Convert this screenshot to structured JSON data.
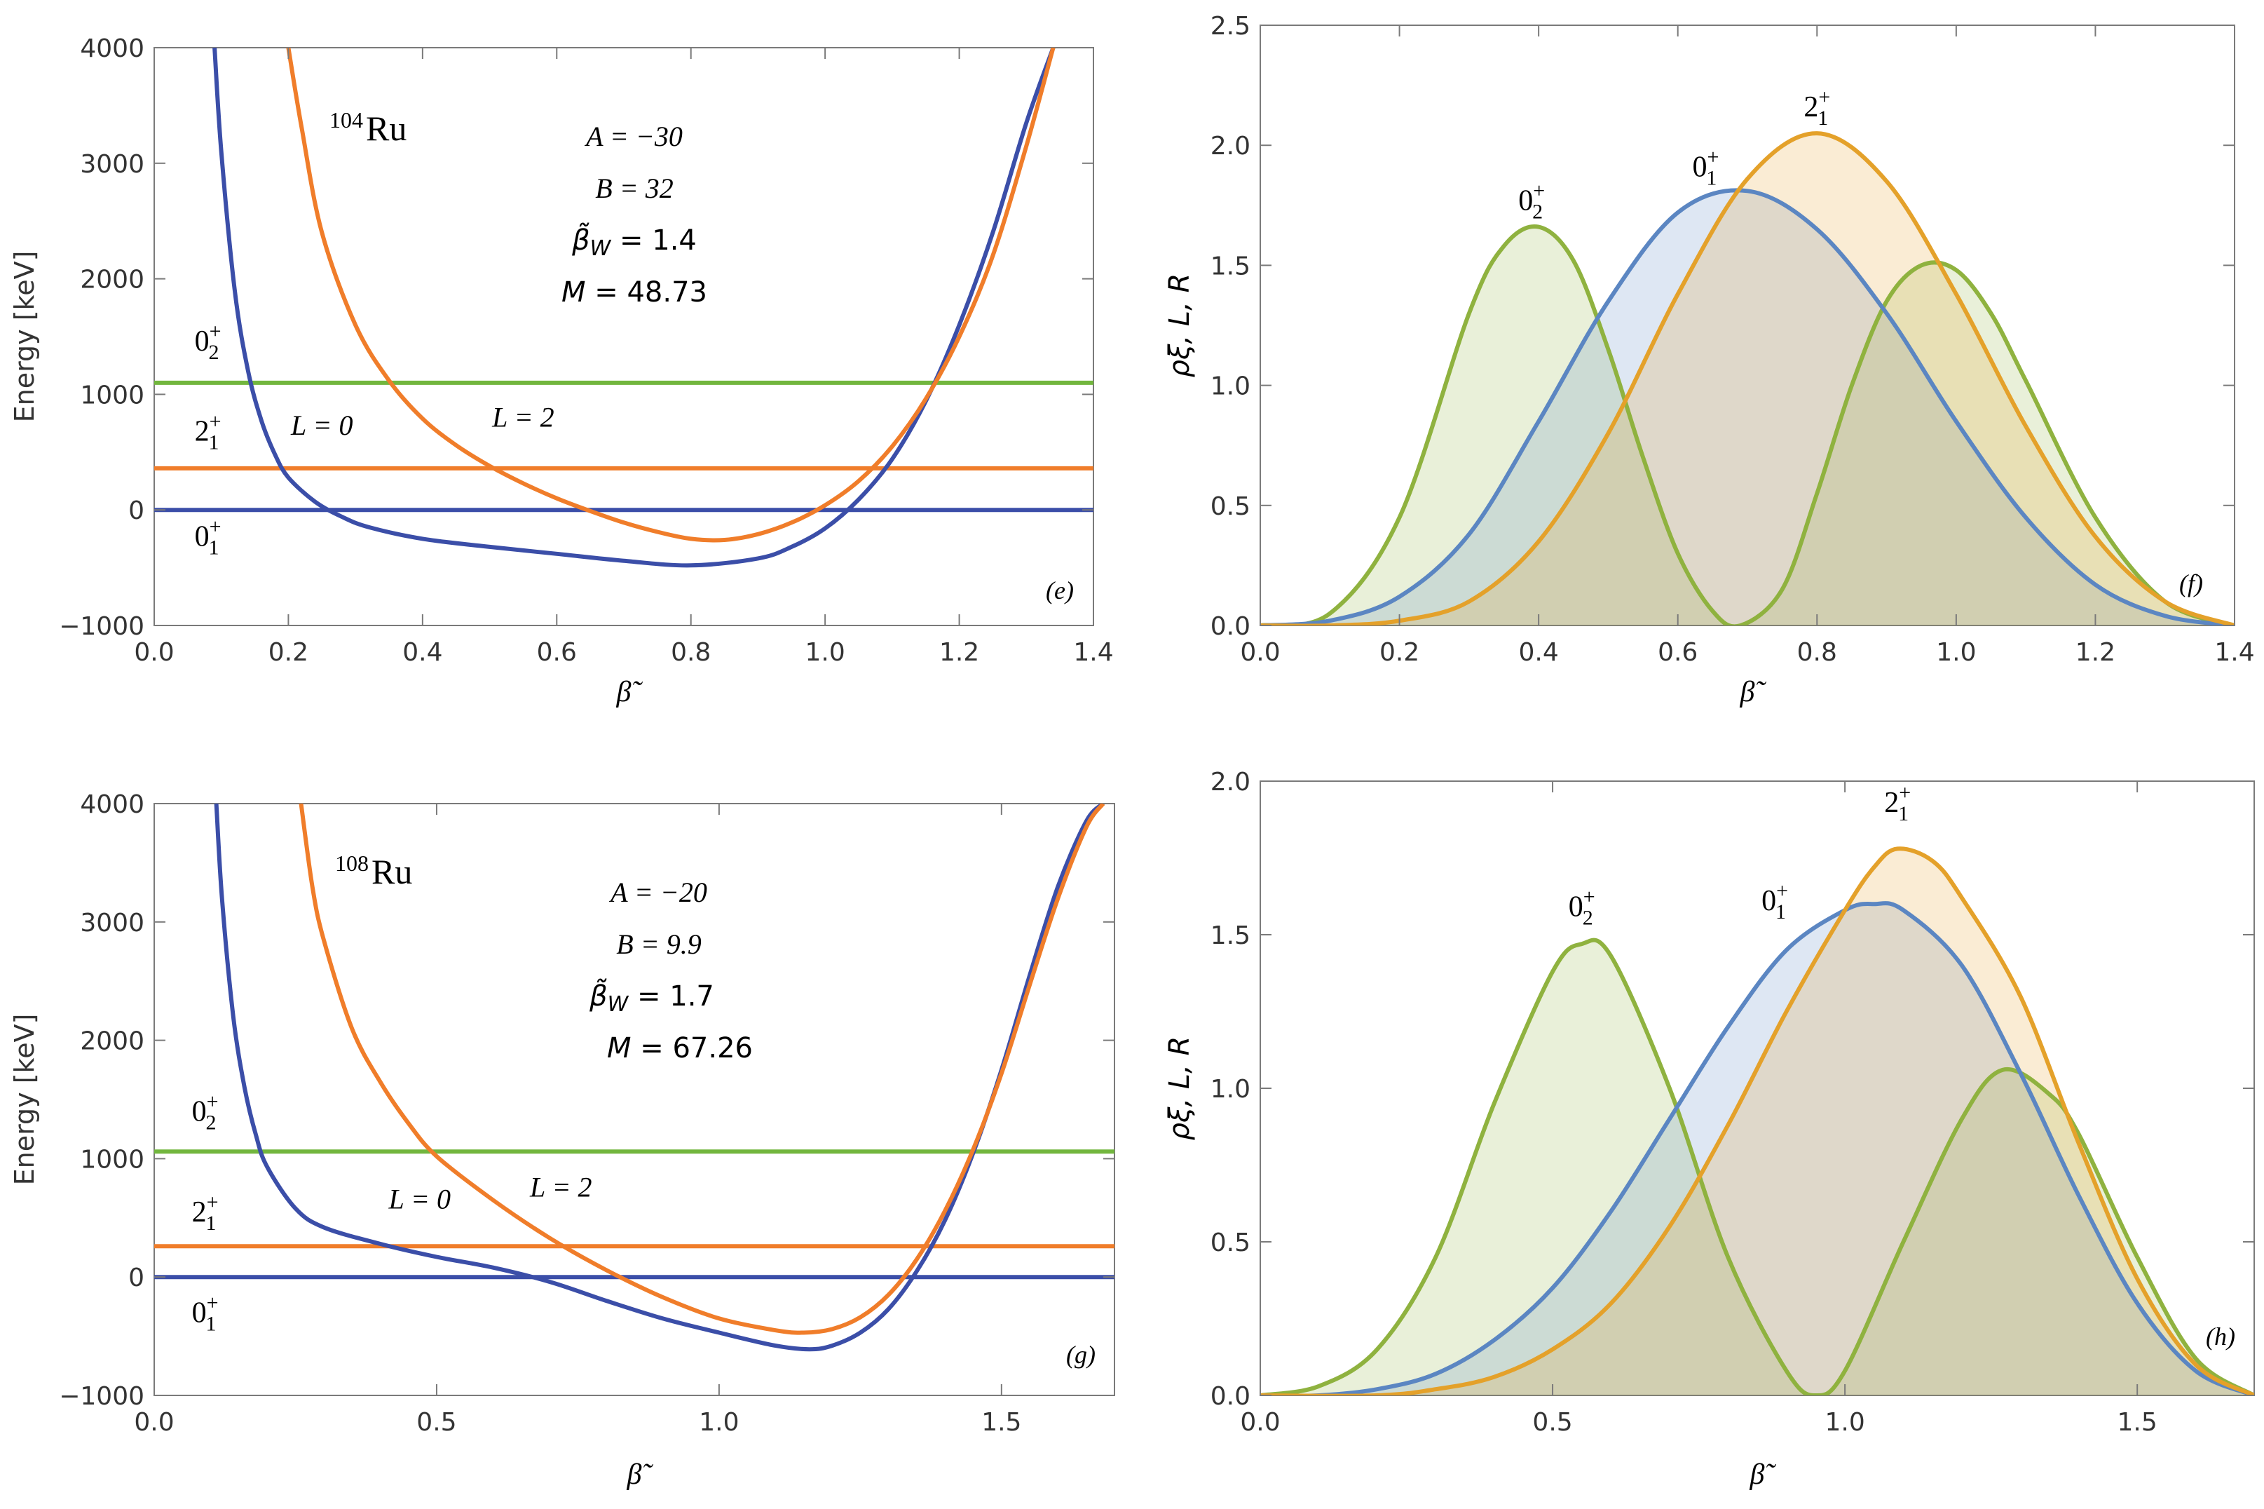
{
  "colors": {
    "blue": "#3b4ea8",
    "orange": "#f07d2a",
    "green": "#72b63e",
    "dens_blue": "#5b86c2",
    "dens_orange": "#e4a12a",
    "dens_green": "#8fb23f"
  },
  "chart_data": [
    {
      "type": "line",
      "panel": "(e)",
      "nucleus_mass": "104",
      "nucleus_symbol": "Ru",
      "params": {
        "A": "A = −30",
        "B": "B = 32",
        "bw_lhs": "β̃",
        "bw_sub": "W",
        "bw_val": " = 1.4",
        "M_lhs": "M",
        "M_val": " = 48.73"
      },
      "xlabel": "β̃",
      "ylabel": "Energy [keV]",
      "xlim": [
        0,
        1.4
      ],
      "ylim": [
        -1000,
        4000
      ],
      "xticks": [
        0.0,
        0.2,
        0.4,
        0.6,
        0.8,
        1.0,
        1.2,
        1.4
      ],
      "xtick_labels": [
        "0.0",
        "0.2",
        "0.4",
        "0.6",
        "0.8",
        "1.0",
        "1.2",
        "1.4"
      ],
      "yticks": [
        -1000,
        0,
        1000,
        2000,
        3000,
        4000
      ],
      "ytick_labels": [
        "−1000",
        "0",
        "1000",
        "2000",
        "3000",
        "4000"
      ],
      "potentials": [
        {
          "name": "L = 0",
          "label_pos": [
            0.25,
            650
          ],
          "x": [
            0.09,
            0.1,
            0.12,
            0.14,
            0.16,
            0.18,
            0.2,
            0.24,
            0.28,
            0.32,
            0.4,
            0.5,
            0.6,
            0.7,
            0.8,
            0.9,
            0.95,
            1.0,
            1.05,
            1.1,
            1.15,
            1.2,
            1.25,
            1.3,
            1.34
          ],
          "y": [
            4000,
            3100,
            1900,
            1200,
            770,
            480,
            280,
            70,
            -60,
            -150,
            -250,
            -320,
            -380,
            -440,
            -480,
            -420,
            -320,
            -160,
            90,
            440,
            940,
            1600,
            2400,
            3350,
            4000
          ]
        },
        {
          "name": "L = 2",
          "label_pos": [
            0.55,
            720
          ],
          "x": [
            0.2,
            0.22,
            0.25,
            0.3,
            0.35,
            0.4,
            0.45,
            0.5,
            0.55,
            0.6,
            0.65,
            0.7,
            0.75,
            0.8,
            0.85,
            0.9,
            0.95,
            1.0,
            1.05,
            1.1,
            1.15,
            1.2,
            1.25,
            1.3,
            1.34
          ],
          "y": [
            4000,
            3300,
            2400,
            1600,
            1120,
            790,
            560,
            380,
            230,
            100,
            -10,
            -110,
            -190,
            -250,
            -260,
            -210,
            -110,
            40,
            250,
            550,
            960,
            1500,
            2200,
            3150,
            4000
          ]
        }
      ],
      "levels": [
        {
          "state": "0",
          "sub": "1",
          "energy": 0,
          "label_pos": [
            0.08,
            -310
          ]
        },
        {
          "state": "2",
          "sub": "1",
          "energy": 360,
          "label_pos": [
            0.08,
            600
          ]
        },
        {
          "state": "0",
          "sub": "2",
          "energy": 1100,
          "label_pos": [
            0.08,
            1380
          ]
        }
      ]
    },
    {
      "type": "area",
      "panel": "(f)",
      "xlabel": "β̃",
      "ylabel": "ρξ, L, R",
      "xlim": [
        0,
        1.4
      ],
      "ylim": [
        0,
        2.5
      ],
      "xticks": [
        0.0,
        0.2,
        0.4,
        0.6,
        0.8,
        1.0,
        1.2,
        1.4
      ],
      "xtick_labels": [
        "0.0",
        "0.2",
        "0.4",
        "0.6",
        "0.8",
        "1.0",
        "1.2",
        "1.4"
      ],
      "yticks": [
        0.0,
        0.5,
        1.0,
        1.5,
        2.0,
        2.5
      ],
      "ytick_labels": [
        "0.0",
        "0.5",
        "1.0",
        "1.5",
        "2.0",
        "2.5"
      ],
      "densities": [
        {
          "state": "0",
          "sub": "1",
          "color": "blue",
          "label_pos": [
            0.64,
            1.87
          ],
          "x": [
            0.0,
            0.1,
            0.2,
            0.3,
            0.4,
            0.5,
            0.6,
            0.7,
            0.8,
            0.9,
            1.0,
            1.1,
            1.2,
            1.3,
            1.4
          ],
          "y": [
            0.0,
            0.02,
            0.12,
            0.38,
            0.85,
            1.35,
            1.72,
            1.81,
            1.65,
            1.3,
            0.85,
            0.45,
            0.17,
            0.04,
            0.0
          ]
        },
        {
          "state": "2",
          "sub": "1",
          "color": "orange",
          "label_pos": [
            0.8,
            2.12
          ],
          "x": [
            0.0,
            0.1,
            0.2,
            0.3,
            0.4,
            0.5,
            0.6,
            0.7,
            0.8,
            0.9,
            1.0,
            1.1,
            1.2,
            1.3,
            1.4
          ],
          "y": [
            0.0,
            0.0,
            0.02,
            0.1,
            0.35,
            0.8,
            1.38,
            1.86,
            2.05,
            1.85,
            1.38,
            0.83,
            0.37,
            0.1,
            0.0
          ]
        },
        {
          "state": "0",
          "sub": "2",
          "color": "green",
          "label_pos": [
            0.39,
            1.73
          ],
          "x": [
            0.0,
            0.1,
            0.2,
            0.3,
            0.35,
            0.4,
            0.45,
            0.5,
            0.55,
            0.6,
            0.65,
            0.69,
            0.75,
            0.8,
            0.85,
            0.9,
            0.95,
            1.0,
            1.05,
            1.1,
            1.2,
            1.3,
            1.4
          ],
          "y": [
            0.0,
            0.05,
            0.45,
            1.3,
            1.58,
            1.66,
            1.52,
            1.15,
            0.7,
            0.3,
            0.06,
            0.0,
            0.15,
            0.55,
            1.0,
            1.35,
            1.5,
            1.48,
            1.3,
            1.02,
            0.45,
            0.1,
            0.0
          ]
        }
      ]
    },
    {
      "type": "line",
      "panel": "(g)",
      "nucleus_mass": "108",
      "nucleus_symbol": "Ru",
      "params": {
        "A": "A = −20",
        "B": "B = 9.9",
        "bw_lhs": "β̃",
        "bw_sub": "W",
        "bw_val": " = 1.7",
        "M_lhs": "M",
        "M_val": " = 67.26"
      },
      "xlabel": "β̃",
      "ylabel": "Energy [keV]",
      "xlim": [
        0,
        1.7
      ],
      "ylim": [
        -1000,
        4000
      ],
      "xticks": [
        0.0,
        0.5,
        1.0,
        1.5
      ],
      "xtick_labels": [
        "0.0",
        "0.5",
        "1.0",
        "1.5"
      ],
      "yticks": [
        -1000,
        0,
        1000,
        2000,
        3000,
        4000
      ],
      "ytick_labels": [
        "−1000",
        "0",
        "1000",
        "2000",
        "3000",
        "4000"
      ],
      "potentials": [
        {
          "name": "L = 0",
          "label_pos": [
            0.47,
            580
          ],
          "x": [
            0.11,
            0.12,
            0.14,
            0.16,
            0.18,
            0.2,
            0.25,
            0.3,
            0.4,
            0.5,
            0.6,
            0.7,
            0.8,
            0.9,
            1.0,
            1.1,
            1.16,
            1.2,
            1.25,
            1.3,
            1.35,
            1.4,
            1.45,
            1.5,
            1.55,
            1.6,
            1.65,
            1.68
          ],
          "y": [
            4000,
            3200,
            2200,
            1600,
            1200,
            930,
            580,
            420,
            280,
            170,
            80,
            -40,
            -200,
            -350,
            -470,
            -580,
            -610,
            -580,
            -470,
            -270,
            50,
            480,
            1050,
            1750,
            2550,
            3300,
            3850,
            4000
          ]
        },
        {
          "name": "L = 2",
          "label_pos": [
            0.72,
            680
          ],
          "x": [
            0.26,
            0.28,
            0.3,
            0.35,
            0.4,
            0.45,
            0.5,
            0.6,
            0.7,
            0.8,
            0.9,
            1.0,
            1.1,
            1.15,
            1.2,
            1.25,
            1.3,
            1.35,
            1.4,
            1.45,
            1.5,
            1.55,
            1.6,
            1.65,
            1.68
          ],
          "y": [
            4000,
            3300,
            2850,
            2100,
            1650,
            1300,
            1020,
            650,
            330,
            60,
            -170,
            -350,
            -450,
            -470,
            -440,
            -340,
            -150,
            150,
            560,
            1080,
            1720,
            2470,
            3200,
            3800,
            4000
          ]
        }
      ],
      "levels": [
        {
          "state": "0",
          "sub": "1",
          "energy": 0,
          "label_pos": [
            0.09,
            -380
          ]
        },
        {
          "state": "2",
          "sub": "1",
          "energy": 260,
          "label_pos": [
            0.09,
            470
          ]
        },
        {
          "state": "0",
          "sub": "2",
          "energy": 1060,
          "label_pos": [
            0.09,
            1320
          ]
        }
      ]
    },
    {
      "type": "area",
      "panel": "(h)",
      "xlabel": "β̃",
      "ylabel": "ρξ, L, R",
      "xlim": [
        0,
        1.7
      ],
      "ylim": [
        0,
        2.0
      ],
      "xticks": [
        0.0,
        0.5,
        1.0,
        1.5
      ],
      "xtick_labels": [
        "0.0",
        "0.5",
        "1.0",
        "1.5"
      ],
      "yticks": [
        0.0,
        0.5,
        1.0,
        1.5,
        2.0
      ],
      "ytick_labels": [
        "0.0",
        "0.5",
        "1.0",
        "1.5",
        "2.0"
      ],
      "densities": [
        {
          "state": "0",
          "sub": "1",
          "color": "blue",
          "label_pos": [
            0.88,
            1.58
          ],
          "x": [
            0.0,
            0.1,
            0.2,
            0.3,
            0.4,
            0.5,
            0.6,
            0.7,
            0.8,
            0.9,
            1.0,
            1.05,
            1.1,
            1.2,
            1.3,
            1.4,
            1.5,
            1.6,
            1.7
          ],
          "y": [
            0.0,
            0.0,
            0.02,
            0.07,
            0.18,
            0.35,
            0.6,
            0.9,
            1.2,
            1.45,
            1.58,
            1.6,
            1.58,
            1.4,
            1.05,
            0.65,
            0.3,
            0.08,
            0.0
          ]
        },
        {
          "state": "2",
          "sub": "1",
          "color": "orange",
          "label_pos": [
            1.09,
            1.9
          ],
          "x": [
            0.0,
            0.2,
            0.3,
            0.4,
            0.5,
            0.6,
            0.7,
            0.8,
            0.9,
            1.0,
            1.05,
            1.09,
            1.15,
            1.2,
            1.3,
            1.4,
            1.5,
            1.6,
            1.7
          ],
          "y": [
            0.0,
            0.0,
            0.02,
            0.06,
            0.15,
            0.3,
            0.55,
            0.88,
            1.25,
            1.58,
            1.72,
            1.78,
            1.74,
            1.62,
            1.3,
            0.82,
            0.38,
            0.1,
            0.0
          ]
        },
        {
          "state": "0",
          "sub": "2",
          "color": "green",
          "label_pos": [
            0.55,
            1.56
          ],
          "x": [
            0.0,
            0.1,
            0.2,
            0.3,
            0.4,
            0.5,
            0.55,
            0.6,
            0.7,
            0.8,
            0.9,
            0.95,
            1.0,
            1.1,
            1.2,
            1.27,
            1.35,
            1.4,
            1.5,
            1.6,
            1.7
          ],
          "y": [
            0.0,
            0.03,
            0.15,
            0.45,
            0.95,
            1.38,
            1.47,
            1.43,
            1.0,
            0.45,
            0.08,
            0.0,
            0.08,
            0.5,
            0.9,
            1.06,
            0.98,
            0.85,
            0.45,
            0.12,
            0.0
          ]
        }
      ]
    }
  ]
}
